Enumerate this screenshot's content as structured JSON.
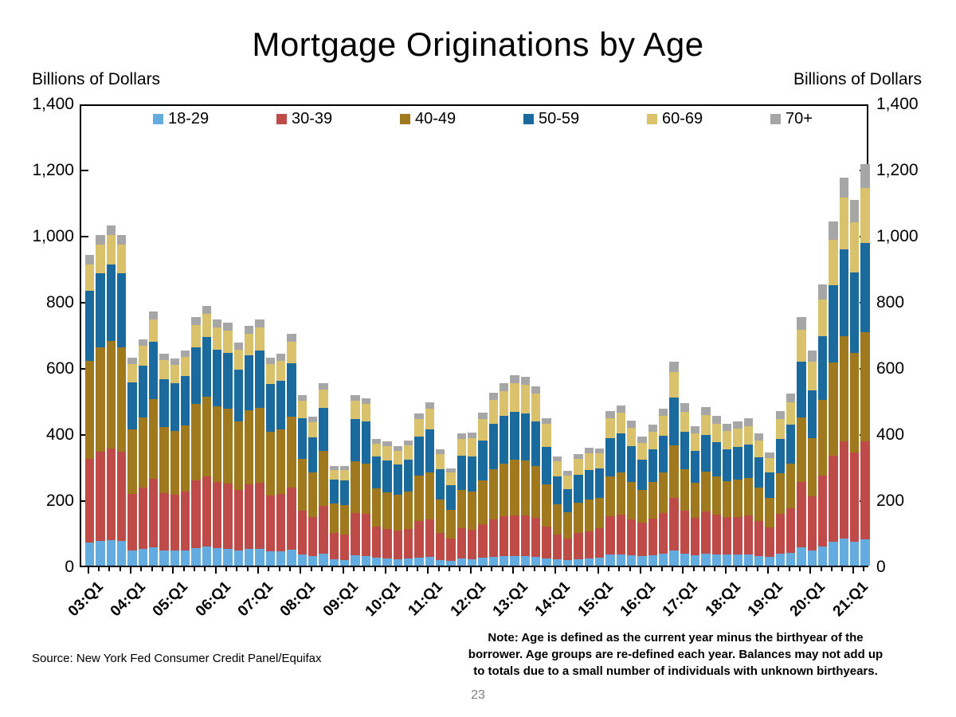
{
  "title": "Mortgage Originations by Age",
  "axis_unit_left": "Billions of Dollars",
  "axis_unit_right": "Billions of Dollars",
  "source": "Source: New York Fed Consumer Credit Panel/Equifax",
  "note_lines": [
    "Note: Age is defined as the current year minus the birthyear of the",
    "borrower. Age groups are re-defined each year. Balances may not add up",
    "to totals due to a small number of individuals with unknown birthyears."
  ],
  "page_number": "23",
  "y_axis": {
    "ticks": [
      "1,400",
      "1,200",
      "1,000",
      "800",
      "600",
      "400",
      "200",
      "0"
    ],
    "tick_values": [
      1400,
      1200,
      1000,
      800,
      600,
      400,
      200,
      0
    ]
  },
  "chart_data": {
    "type": "bar",
    "stacked": true,
    "title": "Mortgage Originations by Age",
    "ylabel": "Billions of Dollars",
    "ylim": [
      0,
      1400
    ],
    "grid": false,
    "legend_position": "top-inside",
    "x": [
      "03:Q1",
      "03:Q2",
      "03:Q3",
      "03:Q4",
      "04:Q1",
      "04:Q2",
      "04:Q3",
      "04:Q4",
      "05:Q1",
      "05:Q2",
      "05:Q3",
      "05:Q4",
      "06:Q1",
      "06:Q2",
      "06:Q3",
      "06:Q4",
      "07:Q1",
      "07:Q2",
      "07:Q3",
      "07:Q4",
      "08:Q1",
      "08:Q2",
      "08:Q3",
      "08:Q4",
      "09:Q1",
      "09:Q2",
      "09:Q3",
      "09:Q4",
      "10:Q1",
      "10:Q2",
      "10:Q3",
      "10:Q4",
      "11:Q1",
      "11:Q2",
      "11:Q3",
      "11:Q4",
      "12:Q1",
      "12:Q2",
      "12:Q3",
      "12:Q4",
      "13:Q1",
      "13:Q2",
      "13:Q3",
      "13:Q4",
      "14:Q1",
      "14:Q2",
      "14:Q3",
      "14:Q4",
      "15:Q1",
      "15:Q2",
      "15:Q3",
      "15:Q4",
      "16:Q1",
      "16:Q2",
      "16:Q3",
      "16:Q4",
      "17:Q1",
      "17:Q2",
      "17:Q3",
      "17:Q4",
      "18:Q1",
      "18:Q2",
      "18:Q3",
      "18:Q4",
      "19:Q1",
      "19:Q2",
      "19:Q3",
      "19:Q4",
      "20:Q1",
      "20:Q2",
      "20:Q3",
      "20:Q4",
      "21:Q1",
      "21:Q2"
    ],
    "x_tick_label_every": 4,
    "x_tick_labels": [
      "03:Q1",
      "04:Q1",
      "05:Q1",
      "06:Q1",
      "07:Q1",
      "08:Q1",
      "09:Q1",
      "10:Q1",
      "11:Q1",
      "12:Q1",
      "13:Q1",
      "14:Q1",
      "15:Q1",
      "16:Q1",
      "17:Q1",
      "18:Q1",
      "19:Q1",
      "20:Q1",
      "21:Q1"
    ],
    "series": [
      {
        "name": "18-29",
        "color": "#64ABE0",
        "values": [
          70,
          75,
          77,
          75,
          46,
          50,
          56,
          47,
          45,
          47,
          54,
          57,
          52,
          51,
          47,
          51,
          51,
          43,
          44,
          48,
          33,
          29,
          36,
          20,
          18,
          31,
          30,
          23,
          21,
          20,
          21,
          25,
          26,
          18,
          15,
          21,
          20,
          23,
          26,
          28,
          29,
          29,
          27,
          22,
          19,
          17,
          20,
          21,
          25,
          33,
          34,
          31,
          29,
          32,
          36,
          46,
          37,
          32,
          36,
          34,
          33,
          33,
          34,
          30,
          26,
          35,
          39,
          56,
          46,
          59,
          73,
          82,
          73,
          80
        ]
      },
      {
        "name": "30-39",
        "color": "#BE4B48",
        "values": [
          254,
          270,
          278,
          270,
          170,
          185,
          207,
          173,
          169,
          176,
          203,
          212,
          201,
          198,
          182,
          196,
          200,
          169,
          172,
          188,
          134,
          117,
          144,
          78,
          75,
          129,
          127,
          96,
          90,
          87,
          91,
          111,
          114,
          81,
          68,
          92,
          88,
          102,
          115,
          121,
          124,
          123,
          117,
          96,
          76,
          66,
          78,
          82,
          89,
          117,
          121,
          109,
          101,
          111,
          124,
          160,
          130,
          112,
          127,
          120,
          113,
          115,
          117,
          105,
          89,
          122,
          135,
          196,
          163,
          213,
          260,
          294,
          269,
          295
        ]
      },
      {
        "name": "40-49",
        "color": "#A0781E",
        "values": [
          296,
          315,
          324,
          315,
          197,
          214,
          240,
          200,
          194,
          202,
          233,
          243,
          229,
          226,
          208,
          223,
          227,
          192,
          195,
          214,
          155,
          135,
          166,
          90,
          90,
          155,
          152,
          115,
          111,
          107,
          112,
          136,
          143,
          102,
          85,
          116,
          117,
          134,
          151,
          160,
          167,
          165,
          157,
          129,
          91,
          78,
          93,
          98,
          92,
          121,
          126,
          114,
          99,
          109,
          121,
          157,
          125,
          107,
          122,
          115,
          110,
          112,
          114,
          102,
          89,
          122,
          135,
          196,
          176,
          230,
          281,
          317,
          301,
          330
        ]
      },
      {
        "name": "50-59",
        "color": "#1A6A9E",
        "values": [
          212,
          225,
          232,
          225,
          142,
          155,
          174,
          145,
          143,
          148,
          171,
          179,
          171,
          169,
          155,
          167,
          173,
          146,
          148,
          162,
          124,
          108,
          132,
          72,
          75,
          129,
          127,
          96,
          96,
          92,
          96,
          118,
          128,
          91,
          76,
          104,
          105,
          120,
          136,
          143,
          144,
          143,
          136,
          112,
          83,
          71,
          84,
          89,
          87,
          114,
          119,
          107,
          92,
          100,
          112,
          145,
          113,
          97,
          110,
          104,
          97,
          99,
          101,
          90,
          77,
          105,
          117,
          169,
          146,
          191,
          234,
          264,
          245,
          270
        ]
      },
      {
        "name": "60-69",
        "color": "#DAC26C",
        "values": [
          80,
          85,
          88,
          85,
          55,
          60,
          68,
          56,
          56,
          58,
          67,
          70,
          67,
          66,
          61,
          65,
          69,
          59,
          60,
          65,
          52,
          45,
          55,
          30,
          32,
          54,
          53,
          40,
          43,
          42,
          43,
          53,
          63,
          45,
          38,
          51,
          56,
          65,
          73,
          77,
          89,
          88,
          84,
          69,
          47,
          41,
          48,
          50,
          46,
          61,
          63,
          57,
          50,
          54,
          60,
          78,
          61,
          53,
          60,
          57,
          54,
          55,
          57,
          51,
          44,
          60,
          67,
          96,
          86,
          113,
          138,
          156,
          151,
          167
        ]
      },
      {
        "name": "70+",
        "color": "#A6A6A6",
        "values": [
          28,
          30,
          31,
          30,
          20,
          21,
          24,
          20,
          19,
          20,
          23,
          24,
          24,
          24,
          22,
          23,
          25,
          21,
          22,
          24,
          18,
          16,
          19,
          11,
          11,
          18,
          18,
          14,
          15,
          14,
          15,
          18,
          20,
          14,
          12,
          16,
          16,
          18,
          21,
          22,
          23,
          23,
          22,
          18,
          15,
          13,
          15,
          16,
          16,
          21,
          22,
          20,
          19,
          21,
          23,
          30,
          25,
          21,
          24,
          23,
          22,
          23,
          23,
          21,
          18,
          24,
          27,
          39,
          34,
          44,
          54,
          61,
          66,
          73
        ]
      }
    ]
  }
}
